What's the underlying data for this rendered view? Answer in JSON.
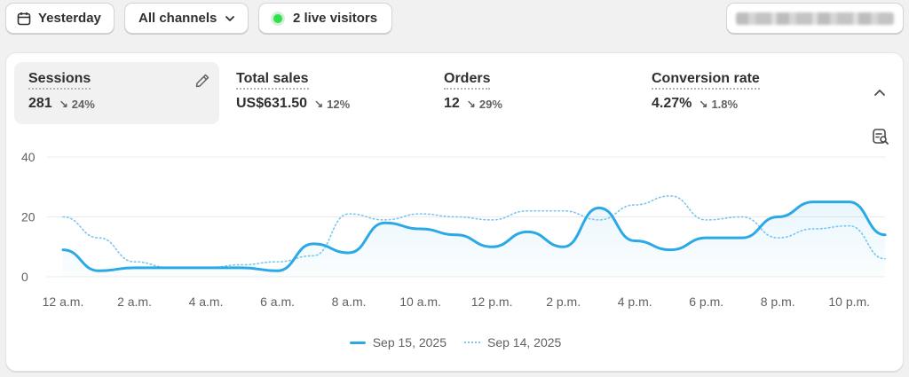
{
  "filters": {
    "date_label": "Yesterday",
    "channels_label": "All channels",
    "live_visitors_label": "2 live visitors"
  },
  "metrics": [
    {
      "label": "Sessions",
      "value": "281",
      "delta": "24%",
      "direction": "down",
      "active": true
    },
    {
      "label": "Total sales",
      "value": "US$631.50",
      "delta": "12%",
      "direction": "down",
      "active": false
    },
    {
      "label": "Orders",
      "value": "12",
      "delta": "29%",
      "direction": "down",
      "active": false
    },
    {
      "label": "Conversion rate",
      "value": "4.27%",
      "delta": "1.8%",
      "direction": "down",
      "active": false
    }
  ],
  "icons": {
    "date": "calendar-icon",
    "channels": "chevron-down-icon",
    "live": "live-dot-icon",
    "edit": "pencil-icon",
    "collapse": "chevron-up-icon",
    "analyze": "search-report-icon",
    "delta": "arrow-down-right-icon"
  },
  "colors": {
    "current": "#2aa9e6",
    "previous": "#78c6ee",
    "live": "#2fe04f"
  },
  "chart_data": {
    "type": "line",
    "x": [
      "12 a.m.",
      "1 a.m.",
      "2 a.m.",
      "3 a.m.",
      "4 a.m.",
      "5 a.m.",
      "6 a.m.",
      "7 a.m.",
      "8 a.m.",
      "9 a.m.",
      "10 a.m.",
      "11 a.m.",
      "12 p.m.",
      "1 p.m.",
      "2 p.m.",
      "3 p.m.",
      "4 p.m.",
      "5 p.m.",
      "6 p.m.",
      "7 p.m.",
      "8 p.m.",
      "9 p.m.",
      "10 p.m.",
      "11 p.m."
    ],
    "x_tick_labels": [
      "12 a.m.",
      "2 a.m.",
      "4 a.m.",
      "6 a.m.",
      "8 a.m.",
      "10 a.m.",
      "12 p.m.",
      "2 p.m.",
      "4 p.m.",
      "6 p.m.",
      "8 p.m.",
      "10 p.m."
    ],
    "series": [
      {
        "name": "Sep 15, 2025",
        "style": "solid",
        "values": [
          9,
          2,
          3,
          3,
          3,
          3,
          2,
          11,
          8,
          18,
          16,
          14,
          10,
          15,
          10,
          23,
          12,
          9,
          13,
          13,
          20,
          25,
          25,
          14
        ]
      },
      {
        "name": "Sep 14, 2025",
        "style": "dotted",
        "values": [
          20,
          13,
          5,
          3,
          3,
          4,
          5,
          7,
          21,
          19,
          21,
          20,
          19,
          22,
          22,
          19,
          24,
          27,
          19,
          20,
          13,
          16,
          17,
          6
        ]
      }
    ],
    "y_ticks": [
      0,
      20,
      40
    ],
    "ylim": [
      0,
      40
    ],
    "grid": true,
    "legend_position": "bottom-center",
    "title": "",
    "xlabel": "",
    "ylabel": ""
  }
}
